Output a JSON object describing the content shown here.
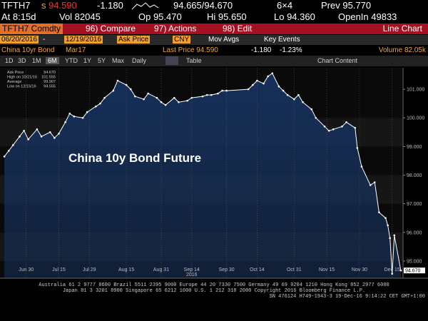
{
  "header": {
    "ticker": "TFTH7",
    "flag": "s",
    "last": "94.590",
    "change": "-1.180",
    "bid_ask": "94.665/94.670",
    "size": "6×4",
    "prev": "Prev 95.770",
    "time": "At 8:15d",
    "vol": "Vol 82045",
    "open": "Op 95.470",
    "high": "Hi 95.650",
    "low": "Lo 94.360",
    "open_interest": "OpenIn 49833"
  },
  "toolbar": {
    "security": "TFTH7 Comdty",
    "menus": [
      "96) Compare",
      "97) Actions",
      "98) Edit"
    ],
    "chart_type": "Line Chart"
  },
  "range": {
    "start": "06/20/2016",
    "end": "12/19/2016",
    "field": "Ask Price",
    "currency": "CNY",
    "options": [
      "Mov Avgs",
      "Key Events"
    ]
  },
  "info": {
    "name": "China 10yr Bond",
    "contract": "Mar17",
    "last_price": "Last Price 94.590",
    "change": "-1.180",
    "change_pct": "-1.23%",
    "volume": "Volume 82.05k"
  },
  "periods": [
    "1D",
    "3D",
    "1M",
    "6M",
    "YTD",
    "1Y",
    "5Y",
    "Max"
  ],
  "frequency": "Daily",
  "tabs": [
    "Table",
    "Chart Content"
  ],
  "chart_data": {
    "type": "line",
    "title": "China 10y Bond Future",
    "x_year": "2016",
    "x": [
      "2016-06-20",
      "2016-06-22",
      "2016-06-24",
      "2016-06-27",
      "2016-06-29",
      "2016-07-01",
      "2016-07-05",
      "2016-07-07",
      "2016-07-11",
      "2016-07-13",
      "2016-07-15",
      "2016-07-18",
      "2016-07-20",
      "2016-07-22",
      "2016-07-26",
      "2016-07-28",
      "2016-08-01",
      "2016-08-03",
      "2016-08-05",
      "2016-08-09",
      "2016-08-11",
      "2016-08-15",
      "2016-08-17",
      "2016-08-19",
      "2016-08-23",
      "2016-08-25",
      "2016-08-29",
      "2016-08-31",
      "2016-09-02",
      "2016-09-06",
      "2016-09-08",
      "2016-09-12",
      "2016-09-14",
      "2016-09-19",
      "2016-09-21",
      "2016-09-23",
      "2016-09-26",
      "2016-09-28",
      "2016-09-30",
      "2016-10-10",
      "2016-10-12",
      "2016-10-14",
      "2016-10-17",
      "2016-10-19",
      "2016-10-21",
      "2016-10-24",
      "2016-10-26",
      "2016-10-28",
      "2016-10-31",
      "2016-11-02",
      "2016-11-04",
      "2016-11-08",
      "2016-11-10",
      "2016-11-14",
      "2016-11-16",
      "2016-11-18",
      "2016-11-22",
      "2016-11-24",
      "2016-11-28",
      "2016-11-29",
      "2016-12-01",
      "2016-12-05",
      "2016-12-07",
      "2016-12-09",
      "2016-12-12",
      "2016-12-13",
      "2016-12-14",
      "2016-12-15",
      "2016-12-16",
      "2016-12-19"
    ],
    "series": [
      {
        "name": "Ask Price",
        "color": "#ffffff",
        "values": [
          98.65,
          98.85,
          99.05,
          99.35,
          99.55,
          99.25,
          99.6,
          99.35,
          99.5,
          99.3,
          99.45,
          99.85,
          100.15,
          100.05,
          100.0,
          100.2,
          100.4,
          100.5,
          100.7,
          100.95,
          101.3,
          101.15,
          101.0,
          100.75,
          100.65,
          100.85,
          100.7,
          100.55,
          100.45,
          100.7,
          100.55,
          100.6,
          100.7,
          100.75,
          100.8,
          100.8,
          100.85,
          100.95,
          100.95,
          101.0,
          101.15,
          101.3,
          101.2,
          101.45,
          101.555,
          101.1,
          100.95,
          100.8,
          100.65,
          100.8,
          100.55,
          100.3,
          100.0,
          99.7,
          99.55,
          99.6,
          99.7,
          99.85,
          99.65,
          98.95,
          98.3,
          97.65,
          97.75,
          96.7,
          96.5,
          96.25,
          95.8,
          94.555,
          95.9,
          94.67
        ]
      }
    ],
    "xlim": [
      "2016-06-18",
      "2016-12-20"
    ],
    "xticks": [
      {
        "value": "2016-06-30",
        "label": "Jun 30"
      },
      {
        "value": "2016-07-15",
        "label": "Jul 15"
      },
      {
        "value": "2016-07-29",
        "label": "Jul 29"
      },
      {
        "value": "2016-08-15",
        "label": "Aug 15"
      },
      {
        "value": "2016-08-31",
        "label": "Aug 31"
      },
      {
        "value": "2016-09-14",
        "label": "Sep 14"
      },
      {
        "value": "2016-09-30",
        "label": "Sep 30"
      },
      {
        "value": "2016-10-14",
        "label": "Oct 14"
      },
      {
        "value": "2016-10-31",
        "label": "Oct 31"
      },
      {
        "value": "2016-11-15",
        "label": "Nov 15"
      },
      {
        "value": "2016-11-30",
        "label": "Nov 30"
      },
      {
        "value": "2016-12-15",
        "label": "Dec 15"
      }
    ],
    "ylim": [
      94.4,
      101.75
    ],
    "yticks": [
      {
        "value": 95,
        "label": "95.000"
      },
      {
        "value": 96,
        "label": "96.000"
      },
      {
        "value": 97,
        "label": "97.000"
      },
      {
        "value": 98,
        "label": "98.000"
      },
      {
        "value": 99,
        "label": "99.000"
      },
      {
        "value": 100,
        "label": "100.000"
      },
      {
        "value": 101,
        "label": "101.000"
      }
    ],
    "legend": [
      {
        "label": "Ask Price",
        "value": "94.670"
      },
      {
        "label": "High on 10/21/16",
        "value": "101.555"
      },
      {
        "label": "Average",
        "value": "99.907"
      },
      {
        "label": "Low on 12/15/16",
        "value": "94.555"
      }
    ],
    "fill_color": "#16305a",
    "grid": true
  },
  "footer": [
    "Australia 61 2 9777 8600 Brazil 5511 2395 9000 Europe 44 20 7330 7500 Germany 49 69 9204 1210 Hong Kong 852 2977 6000",
    "Japan 81 3 3201 8900         Singapore 65 6212 1000         U.S. 1 212 318 2000         Copyright 2016 Bloomberg Finance L.P.",
    "SN 476124 H749-1943-3 19-Dec-16  9:14:22 CET  GMT+1:00"
  ]
}
